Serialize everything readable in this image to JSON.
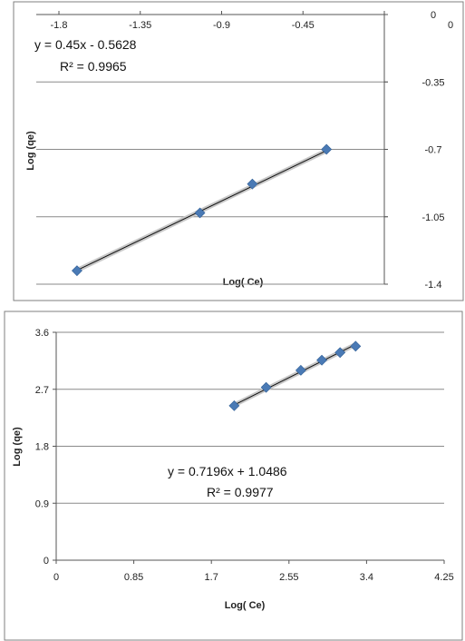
{
  "chart_data": [
    {
      "type": "scatter",
      "xlabel": "Log( Ce)",
      "ylabel": "Log (qe)",
      "xticks": [
        "-1.8",
        "-1.35",
        "-0.9",
        "-0.45",
        "0"
      ],
      "yticks": [
        "0",
        "-0.35",
        "-0.7",
        "-1.05",
        "-1.4"
      ],
      "xlim": [
        -1.8,
        0
      ],
      "ylim": [
        -1.4,
        0
      ],
      "points": [
        {
          "x": -1.7,
          "y": -1.33
        },
        {
          "x": -1.02,
          "y": -1.03
        },
        {
          "x": -0.73,
          "y": -0.88
        },
        {
          "x": -0.32,
          "y": -0.7
        }
      ],
      "trendline": {
        "slope": 0.45,
        "intercept": -0.5628
      },
      "equation": "y = 0.45x - 0.5628",
      "r2": "R² = 0.9965",
      "grid": "horizontal",
      "marker_color": "#4a7ab5"
    },
    {
      "type": "scatter",
      "xlabel": "Log( Ce)",
      "ylabel": "Log (qe)",
      "xticks": [
        "0",
        "0.85",
        "1.7",
        "2.55",
        "3.4",
        "4.25"
      ],
      "yticks": [
        "3.6",
        "2.7",
        "1.8",
        "0.9",
        "0"
      ],
      "xlim": [
        0,
        4.25
      ],
      "ylim": [
        0,
        3.6
      ],
      "points": [
        {
          "x": 1.95,
          "y": 2.44
        },
        {
          "x": 2.3,
          "y": 2.73
        },
        {
          "x": 2.68,
          "y": 3.0
        },
        {
          "x": 2.91,
          "y": 3.16
        },
        {
          "x": 3.11,
          "y": 3.28
        },
        {
          "x": 3.28,
          "y": 3.38
        }
      ],
      "trendline": {
        "slope": 0.7196,
        "intercept": 1.0486
      },
      "equation": "y = 0.7196x + 1.0486",
      "r2": "R² = 0.9977",
      "grid": "horizontal",
      "marker_color": "#4a7ab5"
    }
  ]
}
